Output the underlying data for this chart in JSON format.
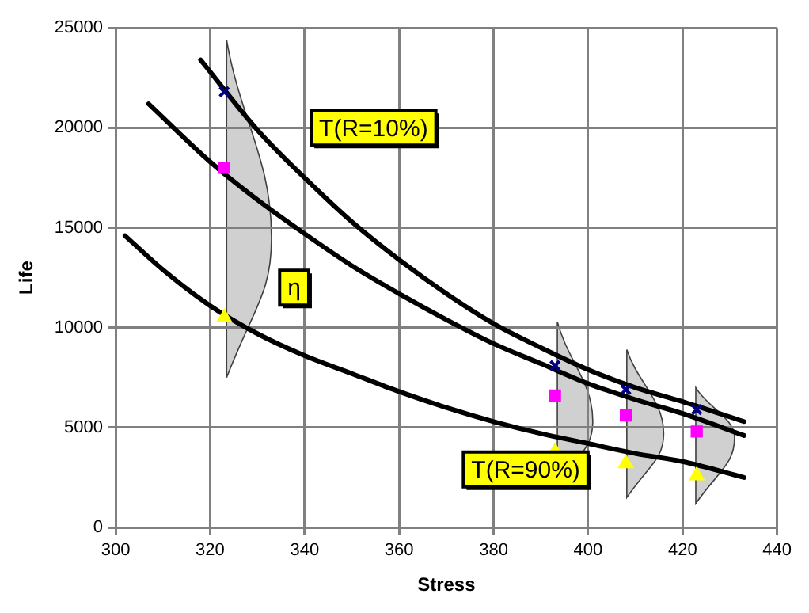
{
  "chart_data": {
    "type": "scatter",
    "xlabel": "Stress",
    "ylabel": "Life",
    "xlim": [
      300,
      440
    ],
    "xticks": [
      300,
      320,
      340,
      360,
      380,
      400,
      420,
      440
    ],
    "ylim": [
      0,
      25000
    ],
    "yticks": [
      0,
      5000,
      10000,
      15000,
      20000,
      25000
    ],
    "grid": true,
    "legend": false,
    "series": [
      {
        "type": "line",
        "color": "#000000",
        "marker": "none",
        "x": [
          318,
          330,
          340,
          350,
          360,
          370,
          380,
          390,
          400,
          410,
          420,
          433
        ],
        "values": [
          23400,
          19900,
          17500,
          15300,
          13400,
          11700,
          10200,
          9000,
          7900,
          7000,
          6300,
          5300
        ]
      },
      {
        "type": "line",
        "color": "#000000",
        "marker": "none",
        "x": [
          307,
          320,
          330,
          340,
          350,
          360,
          370,
          380,
          390,
          400,
          410,
          420,
          433
        ],
        "values": [
          21200,
          18300,
          16400,
          14700,
          13100,
          11700,
          10400,
          9200,
          8200,
          7200,
          6400,
          5700,
          4600
        ]
      },
      {
        "type": "line",
        "color": "#000000",
        "marker": "none",
        "x": [
          302,
          310,
          320,
          330,
          340,
          350,
          360,
          370,
          380,
          390,
          400,
          410,
          420,
          433
        ],
        "values": [
          14600,
          12900,
          11100,
          9700,
          8600,
          7700,
          6800,
          6000,
          5300,
          4700,
          4200,
          3700,
          3300,
          2500
        ]
      },
      {
        "color": "#000080",
        "marker": "cross",
        "x": [
          323,
          393,
          408,
          423
        ],
        "values": [
          21800,
          8100,
          6900,
          5900
        ]
      },
      {
        "color": "#ff00ff",
        "marker": "square",
        "x": [
          323,
          393,
          408,
          423
        ],
        "values": [
          18000,
          6600,
          5600,
          4800
        ]
      },
      {
        "color": "#ffff00",
        "marker": "triangle",
        "x": [
          323,
          393,
          408,
          423
        ],
        "values": [
          10500,
          3800,
          3200,
          2600
        ]
      }
    ],
    "annotations": [
      "T(R=10%)",
      "η",
      "T(R=90%)"
    ]
  }
}
